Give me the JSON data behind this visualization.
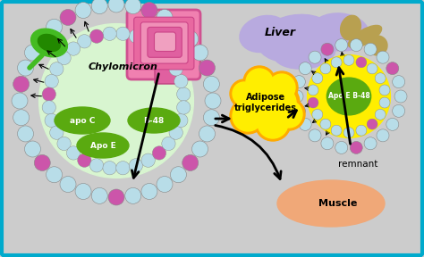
{
  "background_color": "#cccccc",
  "border_color": "#00aacc",
  "liver_color": "#b8aadf",
  "liver_label": "Liver",
  "chylomicron_color": "#d8f5d0",
  "chylomicron_label": "Chylomicron",
  "adipose_label": "Adipose\ntriglycerides",
  "muscle_label": "Muscle",
  "muscle_color": "#f0a878",
  "remnant_label": "remnant",
  "apo_e_b48_label": "Apo E B-48",
  "apo_c_label": "apo C",
  "apo_e_label": "Apo E",
  "b48_label": "B-48",
  "green_cell_color": "#44bb22",
  "yellow_color": "#ffee00",
  "orange_color": "#ffaa00",
  "dark_green": "#5aaa10",
  "dot_color": "#b8dde8",
  "dot_pink": "#cc55aa",
  "gallbladder_color": "#b8a050"
}
